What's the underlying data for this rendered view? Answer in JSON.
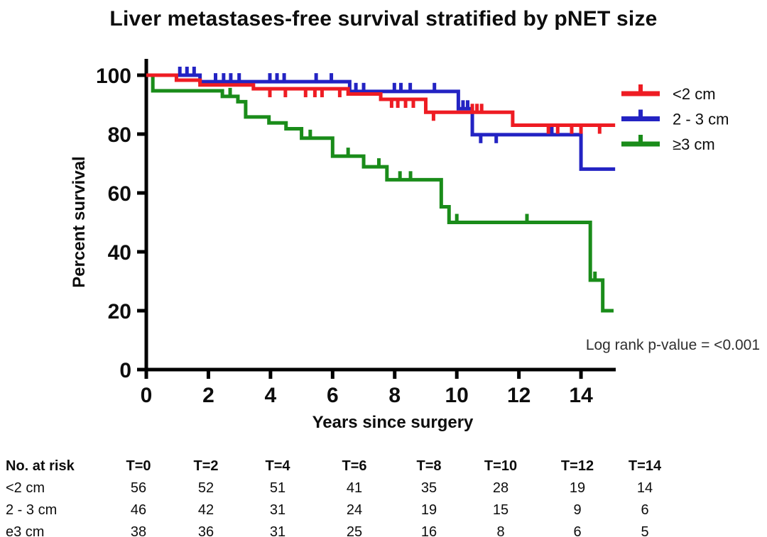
{
  "chart_data": {
    "type": "line",
    "subtype": "kaplan-meier-step",
    "title": "Liver metastases-free survival stratified by pNET size",
    "xlabel": "Years since surgery",
    "ylabel": "Percent survival",
    "xlim": [
      0,
      15.1
    ],
    "ylim": [
      0,
      100
    ],
    "x_ticks": [
      0,
      2,
      4,
      6,
      8,
      10,
      12,
      14
    ],
    "y_ticks": [
      0,
      20,
      40,
      60,
      80,
      100
    ],
    "grid": false,
    "legend_position": "right",
    "annotation": "Log rank p-value = <0.001",
    "axis_color": "#000000",
    "series": [
      {
        "name": "<2 cm",
        "color": "#ee1c23",
        "steps": [
          [
            0,
            100
          ],
          [
            0.97,
            98.3
          ],
          [
            1.73,
            96.7
          ],
          [
            3.45,
            95.4
          ],
          [
            6.5,
            93.6
          ],
          [
            7.55,
            91.8
          ],
          [
            9.0,
            87.4
          ],
          [
            11.8,
            83.0
          ]
        ],
        "end_x": 15.1,
        "censor_ticks_up": [
          10.5,
          10.65,
          10.8
        ],
        "censor_ticks_down": [
          3.98,
          4.48,
          5.13,
          5.43,
          5.66,
          6.23,
          7.9,
          8.1,
          8.35,
          8.6,
          9.25,
          12.95,
          13.25,
          13.7,
          14.0,
          14.6
        ]
      },
      {
        "name": "2 - 3 cm",
        "color": "#2323c3",
        "steps": [
          [
            0,
            100
          ],
          [
            1.73,
            97.8
          ],
          [
            6.55,
            94.5
          ],
          [
            10.05,
            88.6
          ],
          [
            10.5,
            79.8
          ],
          [
            14.0,
            68.1
          ]
        ],
        "end_x": 15.1,
        "censor_ticks_up": [
          1.08,
          1.31,
          1.54,
          2.23,
          2.49,
          2.72,
          2.99,
          3.98,
          4.21,
          4.44,
          5.47,
          5.96,
          6.75,
          7.0,
          7.99,
          8.2,
          8.5,
          9.28,
          10.2,
          10.35,
          13.06
        ],
        "censor_ticks_down": [
          10.77,
          11.27
        ]
      },
      {
        "name": "≥3 cm",
        "color": "#1a8c1a",
        "steps": [
          [
            0,
            100
          ],
          [
            0.21,
            94.7
          ],
          [
            2.45,
            92.8
          ],
          [
            2.95,
            91.0
          ],
          [
            3.2,
            85.8
          ],
          [
            3.95,
            83.8
          ],
          [
            4.5,
            81.8
          ],
          [
            5.0,
            78.6
          ],
          [
            6.0,
            72.5
          ],
          [
            7.0,
            68.9
          ],
          [
            7.75,
            64.5
          ],
          [
            9.5,
            55.3
          ],
          [
            9.75,
            50.0
          ],
          [
            14.3,
            30.4
          ],
          [
            14.7,
            20.0
          ]
        ],
        "end_x": 15.05,
        "censor_ticks_up": [
          2.7,
          5.28,
          6.5,
          7.49,
          8.17,
          8.51,
          10.0,
          12.26,
          14.45
        ],
        "censor_ticks_down": []
      }
    ]
  },
  "risk_table": {
    "title": "No. at risk",
    "columns": [
      "T=0",
      "T=2",
      "T=4",
      "T=6",
      "T=8",
      "T=10",
      "T=12",
      "T=14"
    ],
    "rows": [
      {
        "label": "<2 cm",
        "values": [
          "56",
          "52",
          "51",
          "41",
          "35",
          "28",
          "19",
          "14"
        ]
      },
      {
        "label": "2 - 3 cm",
        "values": [
          "46",
          "42",
          "31",
          "24",
          "19",
          "15",
          "9",
          "6"
        ]
      },
      {
        "label": "e3 cm",
        "values": [
          "38",
          "36",
          "31",
          "25",
          "16",
          "8",
          "6",
          "5"
        ]
      }
    ]
  }
}
